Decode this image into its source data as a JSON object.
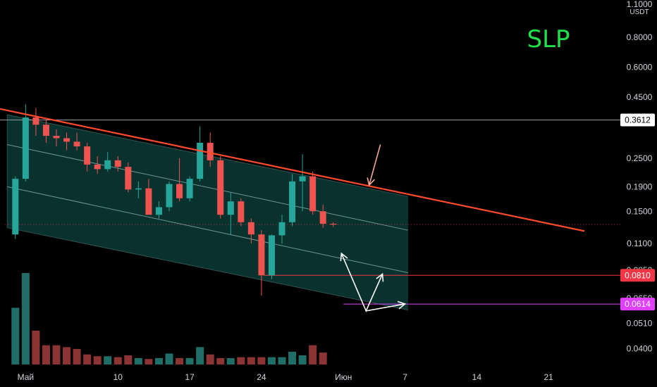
{
  "chart_data": {
    "type": "candlestick",
    "title": "SLP",
    "currency_unit": "USDT",
    "y_scale": "log",
    "ylim": [
      0.0375,
      1.1
    ],
    "y_ticks": [
      {
        "value": 1.1,
        "label": "1.1000"
      },
      {
        "value": 0.8,
        "label": "0.8000"
      },
      {
        "value": 0.6,
        "label": "0.6000"
      },
      {
        "value": 0.45,
        "label": "0.4500"
      },
      {
        "value": 0.25,
        "label": "0.2500"
      },
      {
        "value": 0.19,
        "label": "0.1900"
      },
      {
        "value": 0.15,
        "label": "0.1500"
      },
      {
        "value": 0.11,
        "label": "0.1100"
      },
      {
        "value": 0.085,
        "label": "0.0850"
      },
      {
        "value": 0.065,
        "label": "0.0650"
      },
      {
        "value": 0.051,
        "label": "0.0510"
      },
      {
        "value": 0.04,
        "label": "0.0400"
      }
    ],
    "x_ticks": [
      {
        "day": 0,
        "label": "Май"
      },
      {
        "day": 9,
        "label": "10"
      },
      {
        "day": 16,
        "label": "17"
      },
      {
        "day": 23,
        "label": "24"
      },
      {
        "day": 31,
        "label": "Июн"
      },
      {
        "day": 37,
        "label": "7"
      },
      {
        "day": 44,
        "label": "14"
      },
      {
        "day": 51,
        "label": "21"
      }
    ],
    "xlim": [
      -2.5,
      58
    ],
    "candles": [
      {
        "day": -1,
        "o": 0.12,
        "h": 0.21,
        "l": 0.115,
        "c": 0.205,
        "v": 0.62
      },
      {
        "day": 0,
        "o": 0.205,
        "h": 0.42,
        "l": 0.2,
        "c": 0.37,
        "v": 1.0
      },
      {
        "day": 1,
        "o": 0.37,
        "h": 0.405,
        "l": 0.31,
        "c": 0.345,
        "v": 0.37
      },
      {
        "day": 2,
        "o": 0.345,
        "h": 0.36,
        "l": 0.29,
        "c": 0.31,
        "v": 0.21
      },
      {
        "day": 3,
        "o": 0.31,
        "h": 0.33,
        "l": 0.28,
        "c": 0.303,
        "v": 0.21
      },
      {
        "day": 4,
        "o": 0.303,
        "h": 0.32,
        "l": 0.27,
        "c": 0.293,
        "v": 0.19
      },
      {
        "day": 5,
        "o": 0.293,
        "h": 0.32,
        "l": 0.27,
        "c": 0.28,
        "v": 0.17
      },
      {
        "day": 6,
        "o": 0.28,
        "h": 0.29,
        "l": 0.22,
        "c": 0.235,
        "v": 0.11
      },
      {
        "day": 7,
        "o": 0.235,
        "h": 0.255,
        "l": 0.215,
        "c": 0.225,
        "v": 0.09
      },
      {
        "day": 8,
        "o": 0.225,
        "h": 0.265,
        "l": 0.22,
        "c": 0.245,
        "v": 0.09
      },
      {
        "day": 9,
        "o": 0.245,
        "h": 0.255,
        "l": 0.22,
        "c": 0.23,
        "v": 0.08
      },
      {
        "day": 10,
        "o": 0.23,
        "h": 0.24,
        "l": 0.18,
        "c": 0.185,
        "v": 0.1
      },
      {
        "day": 11,
        "o": 0.185,
        "h": 0.2,
        "l": 0.17,
        "c": 0.187,
        "v": 0.07
      },
      {
        "day": 12,
        "o": 0.187,
        "h": 0.205,
        "l": 0.145,
        "c": 0.145,
        "v": 0.06
      },
      {
        "day": 13,
        "o": 0.145,
        "h": 0.165,
        "l": 0.14,
        "c": 0.156,
        "v": 0.07
      },
      {
        "day": 14,
        "o": 0.156,
        "h": 0.2,
        "l": 0.15,
        "c": 0.195,
        "v": 0.12
      },
      {
        "day": 15,
        "o": 0.195,
        "h": 0.25,
        "l": 0.165,
        "c": 0.17,
        "v": 0.07
      },
      {
        "day": 16,
        "o": 0.17,
        "h": 0.21,
        "l": 0.165,
        "c": 0.205,
        "v": 0.07
      },
      {
        "day": 17,
        "o": 0.205,
        "h": 0.34,
        "l": 0.2,
        "c": 0.29,
        "v": 0.19
      },
      {
        "day": 18,
        "o": 0.29,
        "h": 0.32,
        "l": 0.23,
        "c": 0.245,
        "v": 0.11
      },
      {
        "day": 19,
        "o": 0.245,
        "h": 0.255,
        "l": 0.14,
        "c": 0.145,
        "v": 0.07
      },
      {
        "day": 20,
        "o": 0.145,
        "h": 0.18,
        "l": 0.12,
        "c": 0.165,
        "v": 0.07
      },
      {
        "day": 21,
        "o": 0.165,
        "h": 0.17,
        "l": 0.13,
        "c": 0.135,
        "v": 0.08
      },
      {
        "day": 22,
        "o": 0.135,
        "h": 0.14,
        "l": 0.11,
        "c": 0.12,
        "v": 0.08
      },
      {
        "day": 23,
        "o": 0.12,
        "h": 0.125,
        "l": 0.0665,
        "c": 0.081,
        "v": 0.08
      },
      {
        "day": 24,
        "o": 0.081,
        "h": 0.12,
        "l": 0.078,
        "c": 0.119,
        "v": 0.08
      },
      {
        "day": 25,
        "o": 0.119,
        "h": 0.145,
        "l": 0.11,
        "c": 0.135,
        "v": 0.08
      },
      {
        "day": 26,
        "o": 0.135,
        "h": 0.215,
        "l": 0.13,
        "c": 0.2,
        "v": 0.14
      },
      {
        "day": 27,
        "o": 0.2,
        "h": 0.26,
        "l": 0.15,
        "c": 0.21,
        "v": 0.1
      },
      {
        "day": 28,
        "o": 0.21,
        "h": 0.22,
        "l": 0.145,
        "c": 0.15,
        "v": 0.21
      },
      {
        "day": 29,
        "o": 0.15,
        "h": 0.16,
        "l": 0.128,
        "c": 0.133,
        "v": 0.13
      },
      {
        "day": 30,
        "o": 0.133,
        "h": 0.135,
        "l": 0.129,
        "c": 0.132,
        "v": 0.0
      }
    ],
    "volume_ylim": [
      0,
      1.0
    ],
    "channel": {
      "upper_line": {
        "start": {
          "day": -3.5,
          "price": 0.41
        },
        "end": {
          "day": 54.5,
          "price": 0.124
        }
      },
      "box_upper": {
        "start": {
          "day": -1.8,
          "price": 0.38
        },
        "end": {
          "day": 37.3,
          "price": 0.173
        }
      },
      "box_lower": {
        "start": {
          "day": -1.8,
          "price": 0.128
        },
        "end": {
          "day": 37.3,
          "price": 0.058
        }
      },
      "mid_line_1": {
        "start": {
          "day": -1.8,
          "price": 0.285
        },
        "end": {
          "day": 37.3,
          "price": 0.125
        }
      },
      "mid_line_2": {
        "start": {
          "day": -1.8,
          "price": 0.19
        },
        "end": {
          "day": 37.3,
          "price": 0.083
        }
      }
    },
    "horizontal_lines": [
      {
        "price": 0.3612,
        "label": "0.3612",
        "style": "solid",
        "color": "#9598a1",
        "from_day": -2.5,
        "tag_bg": "#ffffff",
        "tag_fg": "#000000"
      },
      {
        "price": 0.081,
        "label": "0.0810",
        "style": "solid",
        "color": "#f23645",
        "from_day": 23.2,
        "tag_bg": "#f23645",
        "tag_fg": "#ffffff"
      },
      {
        "price": 0.0614,
        "label": "0.0614",
        "style": "solid",
        "color": "#e040fb",
        "from_day": 31,
        "tag_bg": "#e040fb",
        "tag_fg": "#ffffff"
      },
      {
        "price": 0.132,
        "label": "",
        "style": "dotted",
        "color": "#f23645",
        "from_day": -2.0,
        "tag_bg": "",
        "tag_fg": ""
      }
    ],
    "annotations": [
      {
        "type": "arrow",
        "color": "#f4a99a",
        "points": [
          {
            "day": 34.6,
            "price": 0.285
          },
          {
            "day": 33.5,
            "price": 0.193
          }
        ]
      },
      {
        "type": "zigzag",
        "color": "#ffffff",
        "points": [
          {
            "day": 30.8,
            "price": 0.1
          },
          {
            "day": 33.2,
            "price": 0.0575
          },
          {
            "day": 34.8,
            "price": 0.082
          }
        ]
      },
      {
        "type": "arrow",
        "color": "#ffffff",
        "points": [
          {
            "day": 33.2,
            "price": 0.0575
          },
          {
            "day": 37.0,
            "price": 0.0615
          }
        ]
      }
    ],
    "colors": {
      "up": "#26a69a",
      "down": "#ef5350",
      "up_volume": "#1f6f68",
      "down_volume": "#8c3434",
      "channel_fill": "#0a3b37",
      "channel_border": "#8fb8b4",
      "trendline": "#ff4b2b",
      "background": "#000000"
    },
    "grid": false
  }
}
